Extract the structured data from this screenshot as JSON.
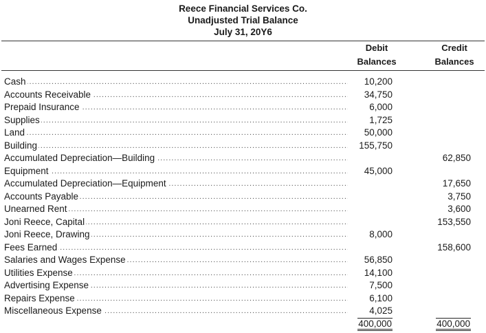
{
  "header": {
    "company": "Reece Financial Services Co.",
    "statement": "Unadjusted Trial Balance",
    "date": "July 31, 20Y6"
  },
  "columns": {
    "debit_line1": "Debit",
    "debit_line2": "Balances",
    "credit_line1": "Credit",
    "credit_line2": "Balances"
  },
  "rows": [
    {
      "account": "Cash",
      "debit": "10,200",
      "credit": ""
    },
    {
      "account": "Accounts Receivable",
      "debit": "34,750",
      "credit": ""
    },
    {
      "account": "Prepaid Insurance",
      "debit": "6,000",
      "credit": ""
    },
    {
      "account": "Supplies",
      "debit": "1,725",
      "credit": ""
    },
    {
      "account": "Land",
      "debit": "50,000",
      "credit": ""
    },
    {
      "account": "Building",
      "debit": "155,750",
      "credit": ""
    },
    {
      "account": "Accumulated Depreciation—Building",
      "debit": "",
      "credit": "62,850"
    },
    {
      "account": "Equipment",
      "debit": "45,000",
      "credit": ""
    },
    {
      "account": "Accumulated Depreciation—Equipment",
      "debit": "",
      "credit": "17,650"
    },
    {
      "account": "Accounts Payable",
      "debit": "",
      "credit": "3,750"
    },
    {
      "account": "Unearned Rent",
      "debit": "",
      "credit": "3,600"
    },
    {
      "account": "Joni Reece, Capital",
      "debit": "",
      "credit": "153,550"
    },
    {
      "account": "Joni Reece, Drawing",
      "debit": "8,000",
      "credit": ""
    },
    {
      "account": "Fees Earned",
      "debit": "",
      "credit": "158,600"
    },
    {
      "account": "Salaries and Wages Expense",
      "debit": "56,850",
      "credit": ""
    },
    {
      "account": "Utilities Expense",
      "debit": "14,100",
      "credit": ""
    },
    {
      "account": "Advertising Expense",
      "debit": "7,500",
      "credit": ""
    },
    {
      "account": "Repairs Expense",
      "debit": "6,100",
      "credit": ""
    },
    {
      "account": "Miscellaneous Expense",
      "debit": "4,025",
      "credit": ""
    }
  ],
  "totals": {
    "debit": "400,000",
    "credit": "400,000"
  }
}
